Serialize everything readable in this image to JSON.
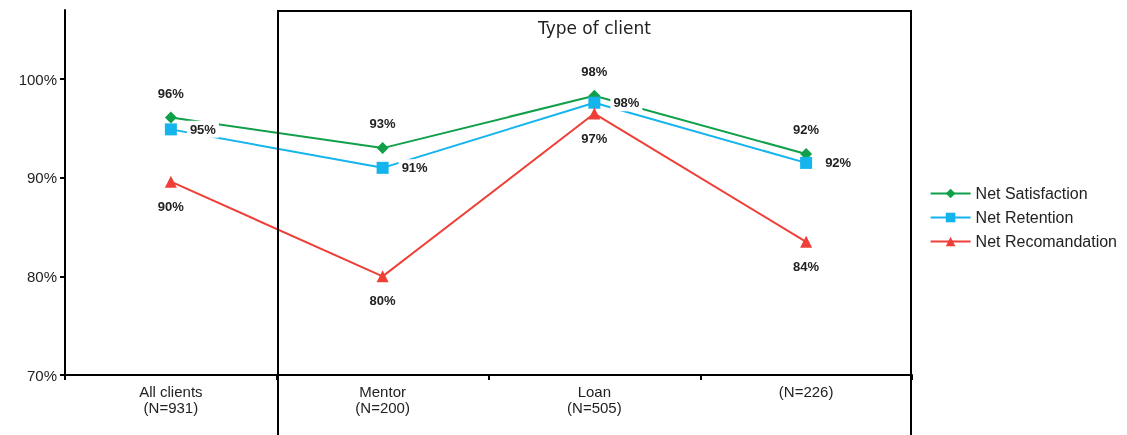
{
  "chart_data": {
    "type": "line",
    "categories": [
      "All clients\n(N=931)",
      "Mentor\n(N=200)",
      "Loan\n(N=505)",
      "(N=226)"
    ],
    "annotations": [
      "Type of client"
    ],
    "ylim": [
      70,
      107
    ],
    "yticks": [
      {
        "value": 70,
        "label": "70%"
      },
      {
        "value": 80,
        "label": "80%"
      },
      {
        "value": 90,
        "label": "90%"
      },
      {
        "value": 100,
        "label": "100%"
      }
    ],
    "grid": false,
    "legend": "right",
    "series": [
      {
        "name": "Net Satisfaction",
        "color": "#11a04a",
        "marker": "diamond",
        "values": [
          96.1,
          93,
          98.3,
          92.4
        ],
        "value_labels": [
          "96%",
          "93%",
          "98%",
          "92%"
        ]
      },
      {
        "name": "Net Retention",
        "color": "#14b4ec",
        "marker": "square",
        "values": [
          94.9,
          91,
          97.6,
          91.5
        ],
        "value_labels": [
          "95%",
          "91%",
          "98%",
          "92%"
        ]
      },
      {
        "name": "Net Recomandation",
        "color": "#ef3f36",
        "marker": "triangle",
        "values": [
          89.6,
          80,
          96.5,
          83.5
        ],
        "value_labels": [
          "90%",
          "80%",
          "97%",
          "84%"
        ]
      }
    ]
  }
}
